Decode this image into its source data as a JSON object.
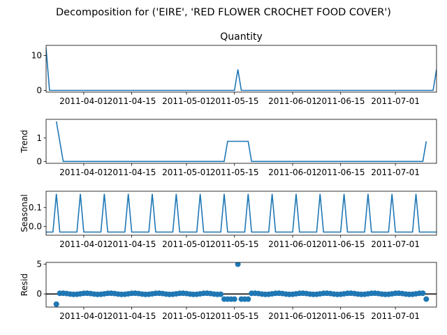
{
  "figure": {
    "suptitle": "Decomposition for ('EIRE', 'RED FLOWER CROCHET FOOD COVER')"
  },
  "colors": {
    "line": "#1f77b4",
    "axis": "#000000",
    "background": "#ffffff"
  },
  "chart_data": [
    {
      "type": "line",
      "title": "Quantity",
      "ylabel": "",
      "x_range": [
        "2011-03-21",
        "2011-07-13"
      ],
      "ylim": [
        -0.5,
        12.9
      ],
      "yticks": [
        0,
        10
      ],
      "xticks": [
        "2011-04-01",
        "2011-04-15",
        "2011-05-01",
        "2011-05-15",
        "2011-06-01",
        "2011-06-15",
        "2011-07-01"
      ],
      "series": [
        {
          "x": [
            "2011-03-21",
            "2011-03-22",
            "2011-05-15",
            "2011-05-16",
            "2011-05-17",
            "2011-07-12",
            "2011-07-13"
          ],
          "y": [
            12,
            0,
            0,
            6,
            0,
            0,
            6
          ]
        }
      ]
    },
    {
      "type": "line",
      "title": "",
      "ylabel": "Trend",
      "x_range": [
        "2011-03-21",
        "2011-07-13"
      ],
      "ylim": [
        -0.08,
        1.8
      ],
      "yticks": [
        0,
        1
      ],
      "xticks": [
        "2011-04-01",
        "2011-04-15",
        "2011-05-01",
        "2011-05-15",
        "2011-06-01",
        "2011-06-15",
        "2011-07-01"
      ],
      "series": [
        {
          "x": [
            "2011-03-24",
            "2011-03-26",
            "2011-05-12",
            "2011-05-13",
            "2011-05-19",
            "2011-05-20",
            "2011-07-09",
            "2011-07-10"
          ],
          "y": [
            1.71,
            0,
            0,
            0.86,
            0.86,
            0,
            0,
            0.86
          ]
        }
      ]
    },
    {
      "type": "line",
      "title": "",
      "ylabel": "Seasonal",
      "x_range": [
        "2011-03-21",
        "2011-07-13"
      ],
      "ylim": [
        -0.045,
        0.185
      ],
      "yticks": [
        0.0,
        0.1
      ],
      "ytick_format": 1,
      "xticks": [
        "2011-04-01",
        "2011-04-15",
        "2011-05-01",
        "2011-05-15",
        "2011-06-01",
        "2011-06-15",
        "2011-07-01"
      ],
      "seasonal": {
        "start": "2011-03-21",
        "end": "2011-07-13",
        "first_peak": "2011-03-24",
        "period": 7,
        "peak": 0.171,
        "base": -0.0286
      }
    },
    {
      "type": "scatter",
      "title": "",
      "ylabel": "Resid",
      "x_range": [
        "2011-03-21",
        "2011-07-13"
      ],
      "ylim": [
        -2.2,
        5.3
      ],
      "yticks": [
        0,
        5
      ],
      "xticks": [
        "2011-04-01",
        "2011-04-15",
        "2011-05-01",
        "2011-05-15",
        "2011-06-01",
        "2011-06-15",
        "2011-07-01"
      ],
      "zero_line": true,
      "resid": {
        "start": "2011-03-24",
        "end": "2011-07-10",
        "default": 0.03,
        "first_value": -1.71,
        "wave": 0.1,
        "overrides": [
          [
            "2011-05-12",
            -0.86
          ],
          [
            "2011-05-13",
            -0.86
          ],
          [
            "2011-05-14",
            -0.86
          ],
          [
            "2011-05-15",
            -0.86
          ],
          [
            "2011-05-16",
            5.0
          ],
          [
            "2011-05-17",
            -0.86
          ],
          [
            "2011-05-18",
            -0.86
          ],
          [
            "2011-05-19",
            -0.86
          ],
          [
            "2011-07-10",
            -0.86
          ]
        ]
      }
    }
  ]
}
